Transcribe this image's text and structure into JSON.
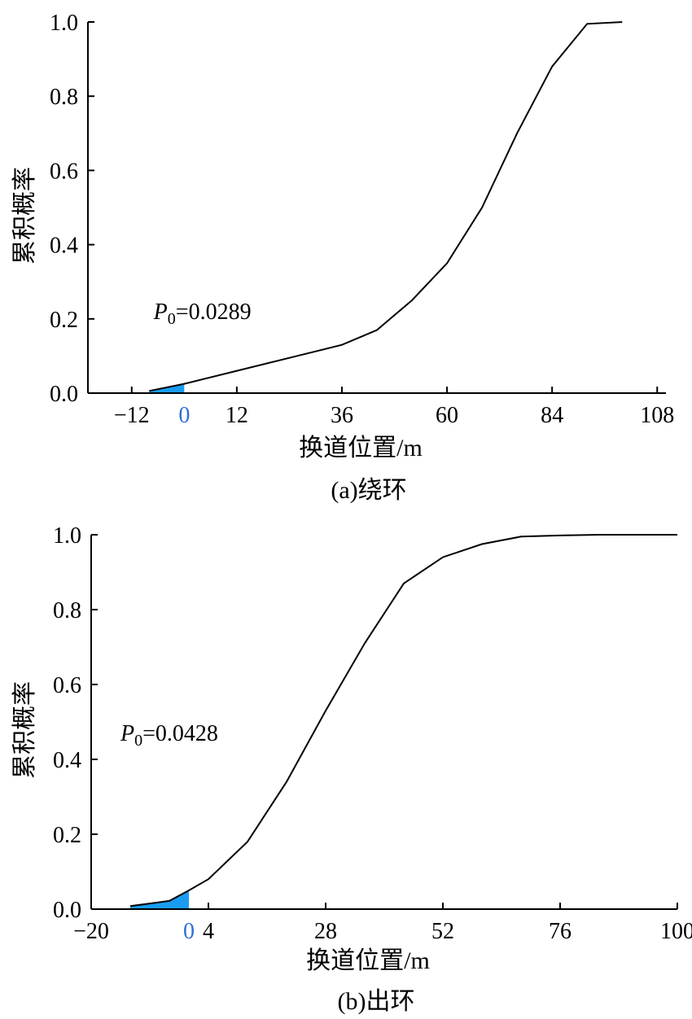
{
  "chart_data": [
    {
      "type": "area",
      "caption": "(a)绕环",
      "xlabel": "换道位置/m",
      "ylabel": "累积概率",
      "xlim": [
        -22,
        110
      ],
      "ylim": [
        0,
        1.0
      ],
      "x_ticks": [
        "−12",
        "0",
        "12",
        "36",
        "60",
        "84",
        "108"
      ],
      "x_tick_values": [
        -12,
        0,
        12,
        36,
        60,
        84,
        108
      ],
      "highlight_tick": "0",
      "y_ticks": [
        "0.0",
        "0.2",
        "0.4",
        "0.6",
        "0.8",
        "1.0"
      ],
      "y_tick_values": [
        0,
        0.2,
        0.4,
        0.6,
        0.8,
        1.0
      ],
      "annotation": {
        "symbol": "P",
        "subscript": "0",
        "text": "=0.0289",
        "x": -7,
        "y": 0.2
      },
      "fill_color": "#1a9cf0",
      "fill_range": [
        -8,
        0
      ],
      "series": [
        {
          "x": [
            -8,
            0,
            12,
            24,
            36,
            44,
            52,
            60,
            68,
            76,
            84,
            92,
            100
          ],
          "y": [
            0.006,
            0.025,
            0.06,
            0.095,
            0.13,
            0.17,
            0.25,
            0.35,
            0.5,
            0.7,
            0.88,
            0.995,
            1.0
          ]
        }
      ]
    },
    {
      "type": "area",
      "caption": "(b)出环",
      "xlabel": "换道位置/m",
      "ylabel": "累积概率",
      "xlim": [
        -20,
        100
      ],
      "ylim": [
        0,
        1.0
      ],
      "x_ticks": [
        "−20",
        "0",
        "4",
        "28",
        "52",
        "76",
        "100"
      ],
      "x_tick_values": [
        -20,
        0,
        4,
        28,
        52,
        76,
        100
      ],
      "highlight_tick": "0",
      "y_ticks": [
        "0.0",
        "0.2",
        "0.4",
        "0.6",
        "0.8",
        "1.0"
      ],
      "y_tick_values": [
        0,
        0.2,
        0.4,
        0.6,
        0.8,
        1.0
      ],
      "annotation": {
        "symbol": "P",
        "subscript": "0",
        "text": "=0.0428",
        "x": -14,
        "y": 0.45
      },
      "fill_color": "#1a9cf0",
      "fill_range": [
        -12,
        0
      ],
      "series": [
        {
          "x": [
            -12,
            -8,
            -4,
            0,
            4,
            12,
            20,
            28,
            36,
            44,
            52,
            60,
            68,
            76,
            84,
            92,
            100
          ],
          "y": [
            0.008,
            0.015,
            0.022,
            0.05,
            0.08,
            0.18,
            0.34,
            0.53,
            0.71,
            0.87,
            0.94,
            0.975,
            0.995,
            0.998,
            1.0,
            1.0,
            1.0
          ]
        }
      ]
    }
  ]
}
